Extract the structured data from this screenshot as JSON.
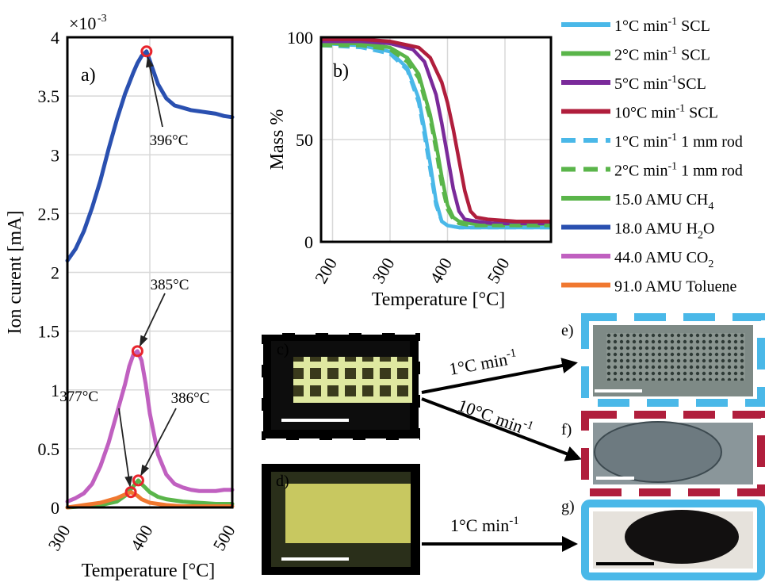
{
  "chart_data": [
    {
      "panel": "a)",
      "type": "line",
      "ylabel": "Ion curent [mA]",
      "xlabel": "Temperature [°C]",
      "exponent": "×10",
      "exponent_power": "-3",
      "xlim": [
        300,
        500
      ],
      "ylim": [
        0,
        4
      ],
      "xticks": [
        "300",
        "400",
        "500"
      ],
      "yticks": [
        "0",
        "0.5",
        "1",
        "1.5",
        "2",
        "2.5",
        "3",
        "3.5",
        "4"
      ],
      "series": [
        {
          "name": "18.0 AMU H2O",
          "color": "#2a50b0",
          "x": [
            300,
            310,
            320,
            330,
            340,
            350,
            360,
            370,
            380,
            385,
            390,
            396,
            400,
            410,
            420,
            430,
            440,
            450,
            460,
            470,
            480,
            490,
            500
          ],
          "y": [
            2.1,
            2.2,
            2.35,
            2.55,
            2.78,
            3.05,
            3.3,
            3.52,
            3.7,
            3.78,
            3.84,
            3.88,
            3.8,
            3.6,
            3.48,
            3.42,
            3.4,
            3.38,
            3.37,
            3.36,
            3.35,
            3.33,
            3.32
          ]
        },
        {
          "name": "44.0 AMU CO2",
          "color": "#c060c0",
          "x": [
            300,
            310,
            320,
            330,
            340,
            350,
            360,
            370,
            375,
            380,
            385,
            390,
            395,
            400,
            410,
            420,
            430,
            440,
            450,
            460,
            470,
            480,
            490,
            500
          ],
          "y": [
            0.05,
            0.08,
            0.12,
            0.2,
            0.35,
            0.55,
            0.8,
            1.05,
            1.2,
            1.3,
            1.33,
            1.25,
            1.05,
            0.8,
            0.45,
            0.28,
            0.2,
            0.17,
            0.15,
            0.14,
            0.14,
            0.14,
            0.15,
            0.15
          ]
        },
        {
          "name": "15.0 AMU CH4",
          "color": "#5ab54a",
          "x": [
            300,
            320,
            340,
            360,
            370,
            380,
            386,
            390,
            400,
            410,
            420,
            440,
            460,
            480,
            500
          ],
          "y": [
            0.0,
            0.01,
            0.02,
            0.05,
            0.1,
            0.18,
            0.23,
            0.2,
            0.13,
            0.09,
            0.07,
            0.05,
            0.04,
            0.03,
            0.03
          ]
        },
        {
          "name": "91.0 AMU Toluene",
          "color": "#f07830",
          "x": [
            300,
            320,
            340,
            360,
            370,
            377,
            385,
            390,
            400,
            420,
            440,
            460,
            480,
            500
          ],
          "y": [
            0.0,
            0.02,
            0.04,
            0.08,
            0.11,
            0.13,
            0.1,
            0.07,
            0.04,
            0.02,
            0.01,
            0.01,
            0.01,
            0.01
          ]
        }
      ],
      "annotations": [
        {
          "text": "396°C",
          "x": 396,
          "y": 3.88
        },
        {
          "text": "385°C",
          "x": 385,
          "y": 1.33
        },
        {
          "text": "377°C",
          "x": 377,
          "y": 0.13
        },
        {
          "text": "386°C",
          "x": 386,
          "y": 0.23
        }
      ]
    },
    {
      "panel": "b)",
      "type": "line",
      "ylabel": "Mass %",
      "xlabel": "Temperature [°C]",
      "xlim": [
        180,
        580
      ],
      "ylim": [
        0,
        100
      ],
      "xticks": [
        "200",
        "300",
        "400",
        "500"
      ],
      "yticks": [
        "0",
        "50",
        "100"
      ],
      "series": [
        {
          "name": "1°C min-1 SCL",
          "color": "#4ab8e8",
          "dash": false,
          "x": [
            180,
            250,
            300,
            330,
            350,
            360,
            370,
            380,
            390,
            400,
            420,
            450,
            500,
            580
          ],
          "y": [
            97,
            96,
            93,
            85,
            70,
            55,
            38,
            20,
            10,
            8,
            7,
            7,
            7,
            7
          ]
        },
        {
          "name": "2°C min-1 SCL",
          "color": "#5ab54a",
          "dash": false,
          "x": [
            180,
            250,
            300,
            330,
            350,
            370,
            380,
            390,
            400,
            410,
            420,
            440,
            470,
            520,
            580
          ],
          "y": [
            97,
            97,
            95,
            90,
            82,
            62,
            48,
            32,
            18,
            12,
            10,
            9,
            8,
            8,
            8
          ]
        },
        {
          "name": "5°C min-1SCL",
          "color": "#7a2a9a",
          "dash": false,
          "x": [
            180,
            250,
            300,
            340,
            360,
            380,
            390,
            400,
            410,
            420,
            430,
            450,
            480,
            530,
            580
          ],
          "y": [
            98,
            98,
            97,
            94,
            88,
            72,
            58,
            42,
            26,
            15,
            11,
            10,
            9,
            9,
            9
          ]
        },
        {
          "name": "10°C min-1 SCL",
          "color": "#b01e3c",
          "dash": false,
          "x": [
            180,
            250,
            300,
            350,
            370,
            390,
            400,
            410,
            420,
            430,
            440,
            450,
            470,
            520,
            580
          ],
          "y": [
            99,
            99,
            98,
            95,
            90,
            78,
            68,
            55,
            40,
            25,
            15,
            12,
            11,
            10,
            10
          ]
        },
        {
          "name": "1°C min-1 1 mm rod",
          "color": "#4ab8e8",
          "dash": true,
          "x": [
            180,
            250,
            300,
            330,
            350,
            360,
            370,
            380,
            390,
            400,
            420,
            450,
            500,
            580
          ],
          "y": [
            96,
            95,
            92,
            84,
            68,
            52,
            35,
            18,
            10,
            8,
            7,
            7,
            7,
            7
          ]
        },
        {
          "name": "2°C min-1 1 mm rod",
          "color": "#5ab54a",
          "dash": true,
          "x": [
            180,
            250,
            300,
            330,
            350,
            370,
            380,
            390,
            400,
            410,
            420,
            440,
            470,
            520,
            580
          ],
          "y": [
            96,
            96,
            94,
            88,
            80,
            60,
            45,
            28,
            16,
            11,
            9,
            8,
            8,
            8,
            8
          ]
        }
      ]
    }
  ],
  "legend": [
    {
      "label": "1°C min",
      "sup": "-1",
      "tail": " SCL",
      "color": "#4ab8e8",
      "dash": false
    },
    {
      "label": "2°C min",
      "sup": "-1",
      "tail": " SCL",
      "color": "#5ab54a",
      "dash": false
    },
    {
      "label": "5°C min",
      "sup": "-1",
      "tail": "SCL",
      "color": "#7a2a9a",
      "dash": false
    },
    {
      "label": "10°C min",
      "sup": "-1",
      "tail": " SCL",
      "color": "#b01e3c",
      "dash": false
    },
    {
      "label": "1°C min",
      "sup": "-1",
      "tail": " 1 mm rod",
      "color": "#4ab8e8",
      "dash": true
    },
    {
      "label": "2°C min",
      "sup": "-1",
      "tail": " 1 mm rod",
      "color": "#5ab54a",
      "dash": true
    },
    {
      "label": "15.0 AMU CH",
      "sub": "4",
      "tail": "",
      "color": "#5ab54a",
      "dash": false
    },
    {
      "label": "18.0 AMU H",
      "sub": "2",
      "tail": "O",
      "color": "#2a50b0",
      "dash": false
    },
    {
      "label": "44.0 AMU CO",
      "sub": "2",
      "tail": "",
      "color": "#c060c0",
      "dash": false
    },
    {
      "label": "91.0 AMU Toluene",
      "tail": "",
      "color": "#f07830",
      "dash": false
    }
  ],
  "photos": {
    "c_label": "c)",
    "d_label": "d)",
    "e_label": "e)",
    "f_label": "f)",
    "g_label": "g)",
    "arrow_e": "1°C min",
    "arrow_e_sup": "-1",
    "arrow_f": "10°C min",
    "arrow_f_sup": "-1",
    "arrow_g": "1°C min",
    "arrow_g_sup": "-1"
  }
}
